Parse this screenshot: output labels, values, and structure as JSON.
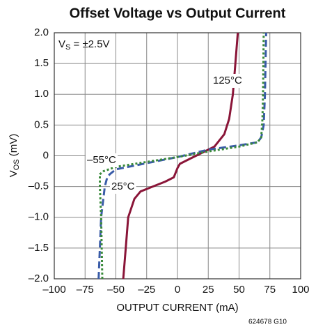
{
  "chart_data": {
    "type": "line",
    "title": "Offset Voltage vs Output Current",
    "xlabel": "OUTPUT CURRENT (mA)",
    "ylabel": [
      "V",
      "OS",
      " (mV)"
    ],
    "annotation": [
      "V",
      "S",
      " = ±2.5V"
    ],
    "footnote": "624678 G10",
    "xlim": [
      -100,
      100
    ],
    "xticks": [
      {
        "value": -100,
        "label": "–100"
      },
      {
        "value": -75,
        "label": "–75"
      },
      {
        "value": -50,
        "label": "–50"
      },
      {
        "value": -25,
        "label": "–25"
      },
      0,
      25,
      50,
      75,
      100
    ],
    "ylim": [
      -2,
      2
    ],
    "yticks": [
      {
        "value": -2,
        "label": "–2.0"
      },
      {
        "value": -1.5,
        "label": "–1.5"
      },
      {
        "value": -1,
        "label": "–1.0"
      },
      {
        "value": -0.5,
        "label": "–0.5"
      },
      0,
      0.5,
      {
        "value": 1,
        "label": "1.0"
      },
      1.5,
      {
        "value": 2,
        "label": "2.0"
      }
    ],
    "grid": true,
    "series": [
      {
        "name": "125°C",
        "color": "#8a1538",
        "style": "solid",
        "x": [
          -44,
          -42,
          -40,
          -35,
          -30,
          -20,
          -10,
          -3,
          0,
          2,
          10,
          20,
          30,
          38,
          42,
          45,
          47,
          49
        ],
        "values": [
          -2.0,
          -1.5,
          -1.0,
          -0.7,
          -0.58,
          -0.5,
          -0.42,
          -0.35,
          -0.2,
          -0.13,
          -0.05,
          0.05,
          0.15,
          0.35,
          0.6,
          1.0,
          1.5,
          2.0
        ]
      },
      {
        "name": "25°C",
        "color": "#3a5ca8",
        "style": "dashed",
        "x": [
          -64,
          -62,
          -59,
          -57,
          -55,
          -50,
          -25,
          0,
          25,
          50,
          65,
          68,
          70,
          71,
          72
        ],
        "values": [
          -2.0,
          -1.0,
          -0.5,
          -0.35,
          -0.3,
          -0.22,
          -0.12,
          -0.02,
          0.1,
          0.17,
          0.22,
          0.3,
          0.5,
          1.0,
          2.0
        ]
      },
      {
        "name": "–55°C",
        "color": "#3a8a3a",
        "style": "dotted",
        "x": [
          -61,
          -62,
          -63,
          -63,
          -60,
          -50,
          -25,
          0,
          25,
          50,
          65,
          68,
          69,
          69.5,
          70
        ],
        "values": [
          -2.0,
          -1.0,
          -0.5,
          -0.3,
          -0.25,
          -0.18,
          -0.1,
          -0.02,
          0.07,
          0.15,
          0.22,
          0.3,
          0.6,
          1.0,
          2.0
        ]
      }
    ]
  }
}
